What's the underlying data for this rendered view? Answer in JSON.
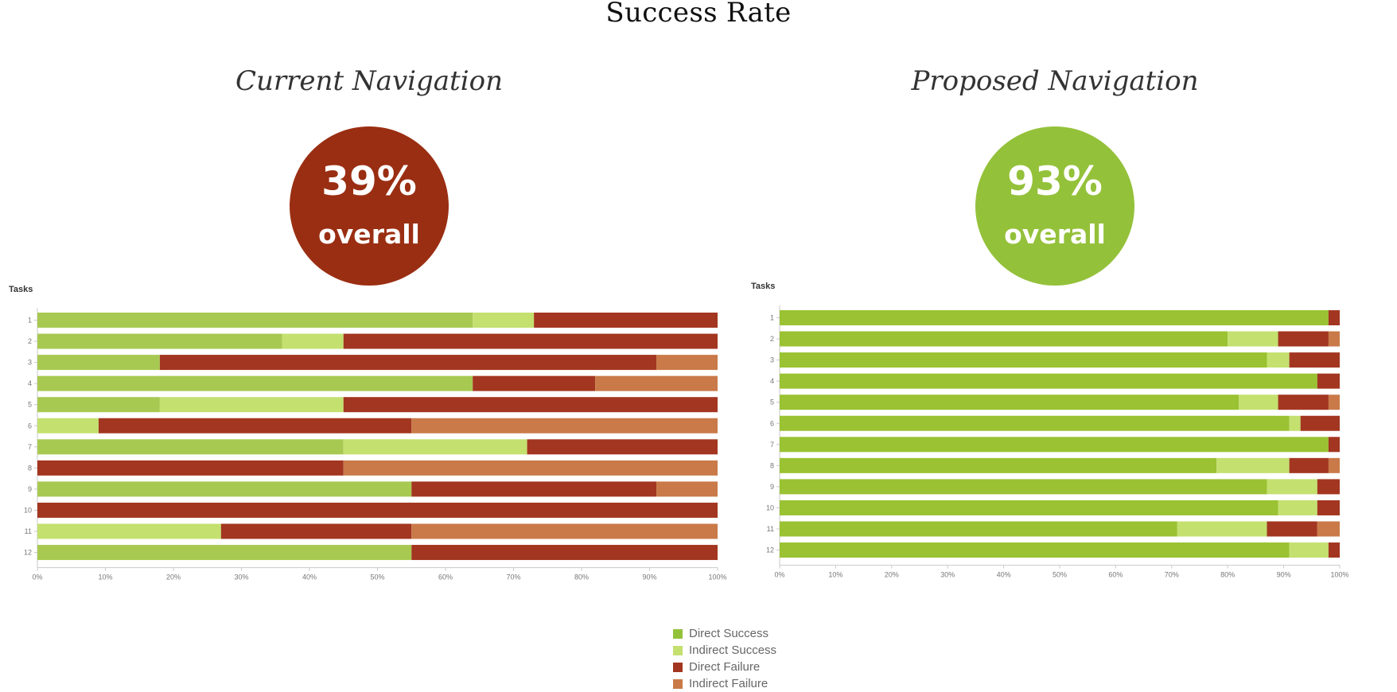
{
  "title": "Success Rate",
  "colors": {
    "direct_success": "#a8c951",
    "indirect_success": "#c4e06f",
    "direct_failure": "#a33620",
    "indirect_failure": "#c97a48",
    "proposed_direct_success": "#9ac232",
    "current_badge": "#9a2e12",
    "proposed_badge": "#94c13a"
  },
  "panels": {
    "current": {
      "title": "Current Navigation",
      "percent": "39%",
      "overall": "overall"
    },
    "proposed": {
      "title": "Proposed Navigation",
      "percent": "93%",
      "overall": "overall"
    }
  },
  "legend": [
    {
      "label": "Direct Success",
      "color": "#94c13a"
    },
    {
      "label": "Indirect Success",
      "color": "#c4e06f"
    },
    {
      "label": "Direct Failure",
      "color": "#a33620"
    },
    {
      "label": "Indirect Failure",
      "color": "#c97a48"
    }
  ],
  "chart_data": [
    {
      "type": "bar",
      "orientation": "horizontal",
      "stacked": true,
      "title": "Current Navigation",
      "ylabel": "Tasks",
      "categories": [
        "1",
        "2",
        "3",
        "4",
        "5",
        "6",
        "7",
        "8",
        "9",
        "10",
        "11",
        "12"
      ],
      "x_ticks": [
        "0%",
        "10%",
        "20%",
        "30%",
        "40%",
        "50%",
        "60%",
        "70%",
        "80%",
        "90%",
        "100%"
      ],
      "xlim": [
        0,
        100
      ],
      "series": [
        {
          "name": "Direct Success",
          "values": [
            64,
            36,
            18,
            64,
            18,
            0,
            45,
            0,
            55,
            0,
            0,
            55
          ]
        },
        {
          "name": "Indirect Success",
          "values": [
            9,
            9,
            0,
            0,
            27,
            9,
            27,
            0,
            0,
            0,
            27,
            0
          ]
        },
        {
          "name": "Direct Failure",
          "values": [
            27,
            55,
            73,
            18,
            55,
            46,
            28,
            45,
            36,
            100,
            28,
            45
          ]
        },
        {
          "name": "Indirect Failure",
          "values": [
            0,
            0,
            9,
            18,
            0,
            45,
            0,
            55,
            9,
            0,
            45,
            0
          ]
        }
      ]
    },
    {
      "type": "bar",
      "orientation": "horizontal",
      "stacked": true,
      "title": "Proposed Navigation",
      "ylabel": "Tasks",
      "categories": [
        "1",
        "2",
        "3",
        "4",
        "5",
        "6",
        "7",
        "8",
        "9",
        "10",
        "11",
        "12"
      ],
      "x_ticks": [
        "0%",
        "10%",
        "20%",
        "30%",
        "40%",
        "50%",
        "60%",
        "70%",
        "80%",
        "90%",
        "100%"
      ],
      "xlim": [
        0,
        100
      ],
      "series": [
        {
          "name": "Direct Success",
          "values": [
            98,
            80,
            87,
            96,
            82,
            91,
            98,
            78,
            87,
            89,
            71,
            91
          ]
        },
        {
          "name": "Indirect Success",
          "values": [
            0,
            9,
            4,
            0,
            7,
            2,
            0,
            13,
            9,
            7,
            16,
            7
          ]
        },
        {
          "name": "Direct Failure",
          "values": [
            2,
            9,
            9,
            4,
            9,
            7,
            2,
            7,
            4,
            4,
            9,
            2
          ]
        },
        {
          "name": "Indirect Failure",
          "values": [
            0,
            2,
            0,
            0,
            2,
            0,
            0,
            2,
            0,
            0,
            4,
            0
          ]
        }
      ]
    }
  ]
}
